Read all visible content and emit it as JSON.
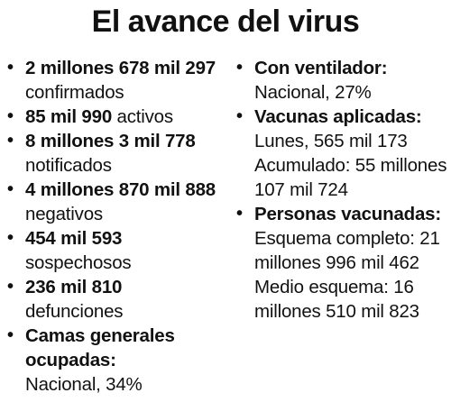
{
  "title": "El avance del virus",
  "left": [
    {
      "bold": "2 millones 678 mil 297",
      "rest": "confirmados"
    },
    {
      "bold": "85 mil 990",
      "rest": "activos"
    },
    {
      "bold": "8 millones 3 mil 778",
      "rest": "notificados"
    },
    {
      "bold": "4 millones 870 mil 888",
      "rest": "negativos"
    },
    {
      "bold": "454 mil 593",
      "rest": "sospechosos"
    },
    {
      "bold": "236 mil 810",
      "rest": "defunciones"
    },
    {
      "bold": "Camas generales ocupadas:",
      "lines": [
        "Nacional, 34%"
      ]
    }
  ],
  "right": [
    {
      "bold": "Con ventilador:",
      "lines": [
        "Nacional, 27%"
      ]
    },
    {
      "bold": "Vacunas aplicadas:",
      "lines": [
        "Lunes, 565 mil 173",
        "Acumulado: 55 millones 107 mil 724"
      ]
    },
    {
      "bold": "Personas vacunadas:",
      "lines": [
        "Esquema completo: 21 millones 996 mil 462",
        "Medio esquema: 16 millones 510 mil 823"
      ]
    }
  ]
}
